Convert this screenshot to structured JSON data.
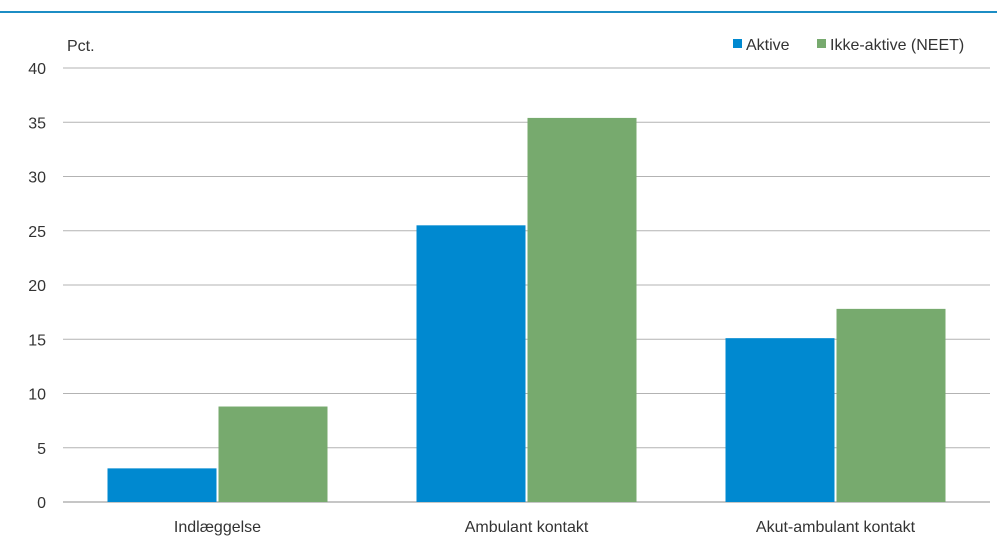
{
  "colors": {
    "header_rule": "#1c8dc4",
    "grid": "#b3b3b3",
    "axis": "#8c8c8c",
    "text": "#333333"
  },
  "chart_data": {
    "type": "bar",
    "unit_label": "Pct.",
    "categories": [
      "Indlæggelse",
      "Ambulant kontakt",
      "Akut-ambulant kontakt"
    ],
    "series": [
      {
        "name": "Aktive",
        "color": "#0089d0",
        "values": [
          3.1,
          25.5,
          15.1
        ]
      },
      {
        "name": "Ikke-aktive (NEET)",
        "color": "#77aa6e",
        "values": [
          8.8,
          35.4,
          17.8
        ]
      }
    ],
    "ylim": [
      0,
      40
    ],
    "yticks": [
      0,
      5,
      10,
      15,
      20,
      25,
      30,
      35,
      40
    ],
    "grid": true,
    "legend_position": "top-right"
  }
}
